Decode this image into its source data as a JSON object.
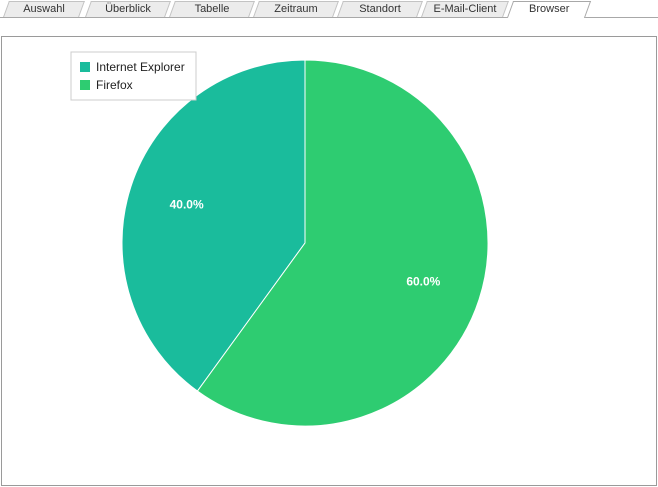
{
  "tabs": [
    {
      "label": "Auswahl",
      "active": false
    },
    {
      "label": "Überblick",
      "active": false
    },
    {
      "label": "Tabelle",
      "active": false
    },
    {
      "label": "Zeitraum",
      "active": false
    },
    {
      "label": "Standort",
      "active": false
    },
    {
      "label": "E-Mail-Client",
      "active": false
    },
    {
      "label": "Browser",
      "active": true
    }
  ],
  "chart_data": {
    "type": "pie",
    "title": "",
    "categories": [
      "Internet Explorer",
      "Firefox"
    ],
    "values": [
      40.0,
      60.0
    ],
    "data_labels": [
      "40.0%",
      "60.0%"
    ],
    "colors": [
      "#1abc9c",
      "#2ecc71"
    ],
    "legend_position": "top-left"
  }
}
